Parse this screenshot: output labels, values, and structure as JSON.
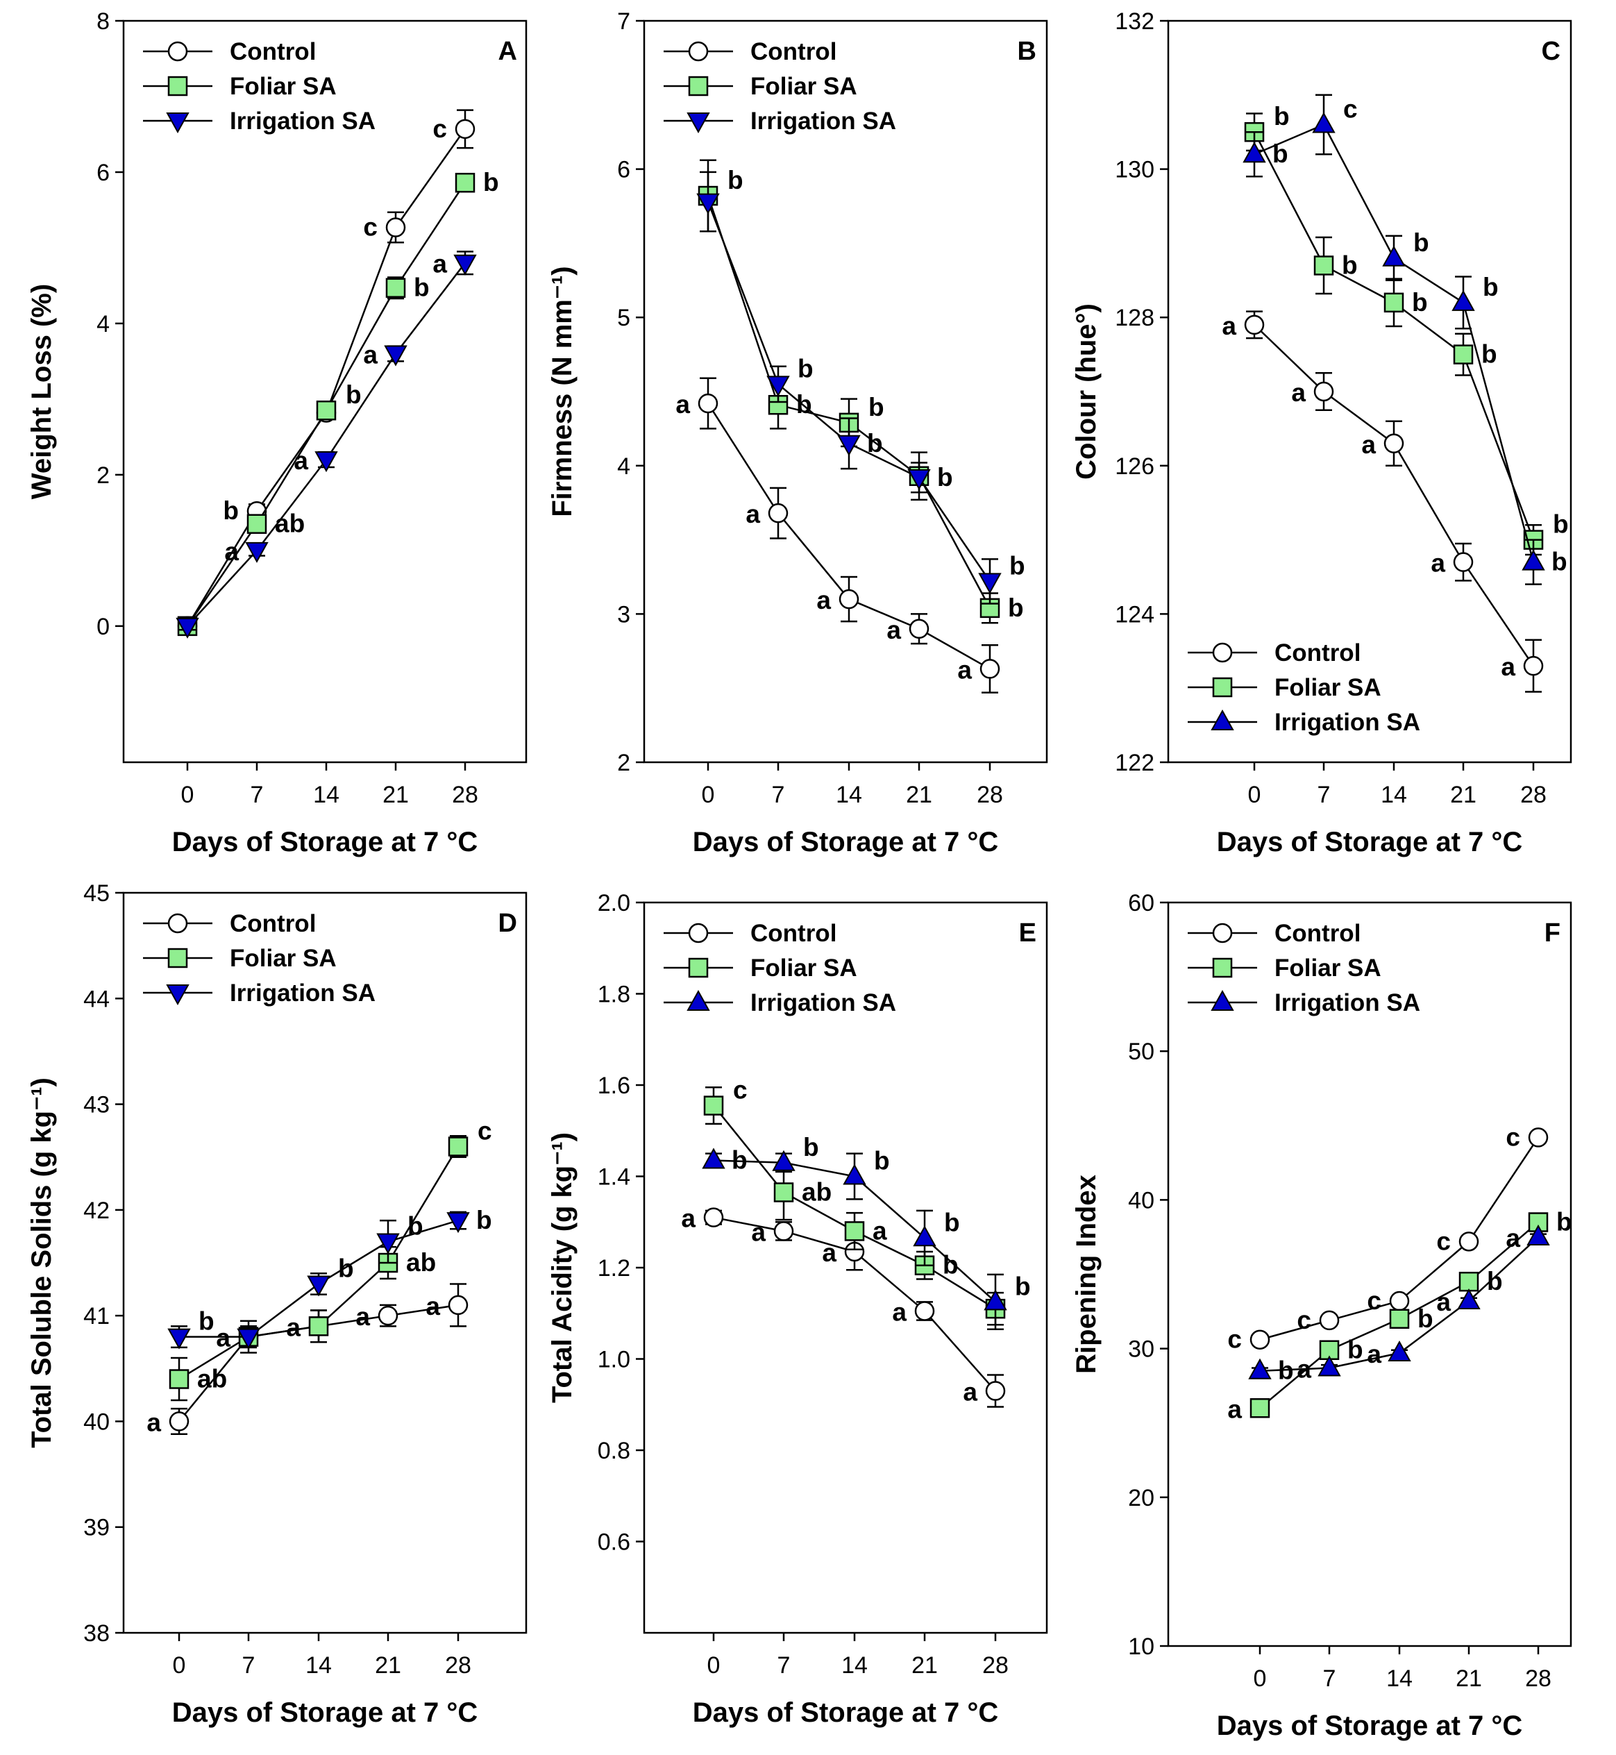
{
  "figure": {
    "colors": {
      "control": "#ffffff",
      "foliar": "#90ee90",
      "irrigation": "#0000cd",
      "line": "#000000"
    },
    "icons": {
      "control": "circle-marker-icon",
      "foliar": "square-marker-icon",
      "irrigation_down": "triangle-down-marker-icon",
      "irrigation_up": "triangle-up-marker-icon"
    }
  },
  "chart_data": [
    {
      "panel": "A",
      "type": "line",
      "xlabel": "Days of Storage at 7 °C",
      "ylabel": "Weight Loss (%)",
      "x": [
        0,
        7,
        14,
        21,
        28
      ],
      "x_tick_labels": [
        "0",
        "7",
        "14",
        "21",
        "28"
      ],
      "ylim": [
        -1.8,
        8
      ],
      "yticks": [
        0,
        2,
        4,
        6,
        8
      ],
      "legend_position": "top-left",
      "series": [
        {
          "name": "Control",
          "marker": "circle",
          "values": [
            0,
            1.52,
            2.82,
            5.27,
            6.57
          ],
          "errors": [
            0.05,
            0.09,
            0.08,
            0.2,
            0.25
          ],
          "labels": [
            "",
            "b",
            "",
            "c",
            "c"
          ]
        },
        {
          "name": "Foliar SA",
          "marker": "square",
          "values": [
            0,
            1.35,
            2.85,
            4.47,
            5.86
          ],
          "errors": [
            0.05,
            0.09,
            0.1,
            0.14,
            0.06
          ],
          "labels": [
            "",
            "ab",
            "b",
            "b",
            "b"
          ]
        },
        {
          "name": "Irrigation SA",
          "marker": "triangle-down",
          "values": [
            0,
            1.0,
            2.2,
            3.6,
            4.8
          ],
          "errors": [
            0.05,
            0.07,
            0.1,
            0.1,
            0.15
          ],
          "labels": [
            "",
            "a",
            "a",
            "a",
            "a"
          ]
        }
      ]
    },
    {
      "panel": "B",
      "type": "line",
      "xlabel": "Days of Storage at 7 °C",
      "ylabel": "Firmness (N mm⁻¹)",
      "x": [
        0,
        7,
        14,
        21,
        28
      ],
      "x_tick_labels": [
        "0",
        "7",
        "14",
        "21",
        "28"
      ],
      "ylim": [
        2,
        7
      ],
      "yticks": [
        2,
        3,
        4,
        5,
        6,
        7
      ],
      "legend_position": "top-left",
      "series": [
        {
          "name": "Control",
          "marker": "circle",
          "values": [
            4.42,
            3.68,
            3.1,
            2.9,
            2.63
          ],
          "errors": [
            0.17,
            0.17,
            0.15,
            0.1,
            0.16
          ],
          "labels": [
            "a",
            "a",
            "a",
            "a",
            "a"
          ]
        },
        {
          "name": "Foliar SA",
          "marker": "square",
          "values": [
            5.82,
            4.41,
            4.29,
            3.93,
            3.04
          ],
          "errors": [
            0.24,
            0.16,
            0.16,
            0.16,
            0.1
          ],
          "labels": [
            "b",
            "b",
            "b",
            "",
            "b"
          ]
        },
        {
          "name": "Irrigation SA",
          "marker": "triangle-down",
          "values": [
            5.78,
            4.55,
            4.15,
            3.92,
            3.22
          ],
          "errors": [
            0.2,
            0.12,
            0.17,
            0.1,
            0.15
          ],
          "labels": [
            "",
            "b",
            "b",
            "b",
            "b"
          ]
        }
      ]
    },
    {
      "panel": "C",
      "type": "line",
      "xlabel": "Days of Storage at 7 °C",
      "ylabel": "Colour (hue°)",
      "x": [
        0,
        7,
        14,
        21,
        28
      ],
      "x_tick_labels": [
        "0",
        "7",
        "14",
        "21",
        "28"
      ],
      "ylim": [
        122,
        132
      ],
      "yticks": [
        122,
        124,
        126,
        128,
        130,
        132
      ],
      "legend_position": "bottom-left",
      "series": [
        {
          "name": "Control",
          "marker": "circle",
          "values": [
            127.9,
            127.0,
            126.3,
            124.7,
            123.3
          ],
          "errors": [
            0.18,
            0.25,
            0.3,
            0.25,
            0.35
          ],
          "labels": [
            "a",
            "a",
            "a",
            "a",
            "a"
          ]
        },
        {
          "name": "Foliar SA",
          "marker": "square",
          "values": [
            130.5,
            128.7,
            128.2,
            127.5,
            125.0
          ],
          "errors": [
            0.25,
            0.38,
            0.32,
            0.28,
            0.2
          ],
          "labels": [
            "b",
            "b",
            "b",
            "b",
            "b"
          ]
        },
        {
          "name": "Irrigation SA",
          "marker": "triangle-up",
          "values": [
            130.2,
            130.6,
            128.8,
            128.2,
            124.7
          ],
          "errors": [
            0.3,
            0.4,
            0.3,
            0.35,
            0.3
          ],
          "labels": [
            "b",
            "c",
            "b",
            "b",
            "b"
          ]
        }
      ]
    },
    {
      "panel": "D",
      "type": "line",
      "xlabel": "Days of Storage at 7 °C",
      "ylabel": "Total Soluble Solids (g kg⁻¹)",
      "x": [
        0,
        7,
        14,
        21,
        28
      ],
      "x_tick_labels": [
        "0",
        "7",
        "14",
        "21",
        "28"
      ],
      "ylim": [
        38,
        45
      ],
      "yticks": [
        38,
        39,
        40,
        41,
        42,
        43,
        44,
        45
      ],
      "legend_position": "top-left",
      "series": [
        {
          "name": "Control",
          "marker": "circle",
          "values": [
            40.0,
            40.8,
            40.9,
            41.0,
            41.1
          ],
          "errors": [
            0.12,
            0.15,
            0.15,
            0.1,
            0.2
          ],
          "labels": [
            "a",
            "a",
            "a",
            "a",
            "a"
          ]
        },
        {
          "name": "Foliar SA",
          "marker": "square",
          "values": [
            40.4,
            40.8,
            40.9,
            41.5,
            42.6
          ],
          "errors": [
            0.2,
            0.1,
            0.15,
            0.15,
            0.1
          ],
          "labels": [
            "ab",
            "",
            "",
            "ab",
            "c"
          ]
        },
        {
          "name": "Irrigation SA",
          "marker": "triangle-down",
          "values": [
            40.8,
            40.8,
            41.3,
            41.7,
            41.9
          ],
          "errors": [
            0.1,
            0.1,
            0.1,
            0.2,
            0.08
          ],
          "labels": [
            "b",
            "",
            "b",
            "b",
            "b"
          ]
        }
      ]
    },
    {
      "panel": "E",
      "type": "line",
      "xlabel": "Days of Storage at 7 °C",
      "ylabel": "Total Acidity (g kg⁻¹)",
      "x": [
        0,
        7,
        14,
        21,
        28
      ],
      "x_tick_labels": [
        "0",
        "7",
        "14",
        "21",
        "28"
      ],
      "ylim": [
        0.4,
        2.0
      ],
      "yticks": [
        0.6,
        0.8,
        1.0,
        1.2,
        1.4,
        1.6,
        1.8,
        2.0
      ],
      "y_tick_labels": [
        "0.6",
        "0.8",
        "1.0",
        "1.2",
        "1.4",
        "1.6",
        "1.8",
        "2.0"
      ],
      "legend_position": "top-left",
      "series": [
        {
          "name": "Control",
          "marker": "circle",
          "values": [
            1.31,
            1.28,
            1.235,
            1.105,
            0.93
          ],
          "errors": [
            0.015,
            0.02,
            0.04,
            0.02,
            0.035
          ],
          "labels": [
            "a",
            "a",
            "a",
            "a",
            "a"
          ]
        },
        {
          "name": "Foliar SA",
          "marker": "square",
          "values": [
            1.555,
            1.365,
            1.28,
            1.205,
            1.11
          ],
          "errors": [
            0.04,
            0.06,
            0.04,
            0.03,
            0.035
          ],
          "labels": [
            "c",
            "ab",
            "a",
            "b",
            ""
          ]
        },
        {
          "name": "Irrigation SA",
          "marker": "triangle-up",
          "values": [
            1.435,
            1.43,
            1.4,
            1.265,
            1.125
          ],
          "errors": [
            0.015,
            0.02,
            0.05,
            0.06,
            0.06
          ],
          "labels": [
            "b",
            "b",
            "b",
            "b",
            "b"
          ]
        }
      ]
    },
    {
      "panel": "F",
      "type": "line",
      "xlabel": "Days of Storage at 7 °C",
      "ylabel": "Ripening Index",
      "x": [
        0,
        7,
        14,
        21,
        28
      ],
      "x_tick_labels": [
        "0",
        "7",
        "14",
        "21",
        "28"
      ],
      "ylim": [
        10,
        60
      ],
      "yticks": [
        10,
        20,
        30,
        40,
        50,
        60
      ],
      "legend_position": "top-left",
      "series": [
        {
          "name": "Control",
          "marker": "circle",
          "values": [
            30.6,
            31.9,
            33.2,
            37.2,
            44.2
          ],
          "errors": [
            0.2,
            0.2,
            0.2,
            0.2,
            0.2
          ],
          "labels": [
            "c",
            "c",
            "c",
            "c",
            "c"
          ]
        },
        {
          "name": "Foliar SA",
          "marker": "square",
          "values": [
            26.0,
            29.9,
            32.0,
            34.5,
            38.5
          ],
          "errors": [
            0.2,
            0.2,
            0.2,
            0.2,
            0.2
          ],
          "labels": [
            "a",
            "b",
            "b",
            "b",
            "b"
          ]
        },
        {
          "name": "Irrigation SA",
          "marker": "triangle-up",
          "values": [
            28.5,
            28.7,
            29.7,
            33.2,
            37.5
          ],
          "errors": [
            0.2,
            0.2,
            0.2,
            0.2,
            0.2
          ],
          "labels": [
            "b",
            "a",
            "a",
            "a",
            "a"
          ]
        }
      ]
    }
  ]
}
